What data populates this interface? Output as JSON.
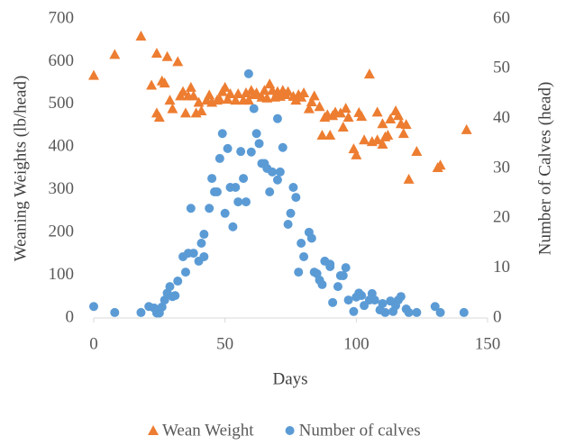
{
  "chart_data": {
    "type": "scatter",
    "x_label": "Days",
    "y_label": "Weaning Weights (lb/head)",
    "y2_label": "Number of Calves (head)",
    "xlim": [
      0,
      150
    ],
    "xticks": [
      0,
      50,
      100,
      150
    ],
    "ylim": [
      0,
      700
    ],
    "yticks": [
      0,
      100,
      200,
      300,
      400,
      500,
      600,
      700
    ],
    "y2lim": [
      0,
      60
    ],
    "y2ticks": [
      0,
      10,
      20,
      30,
      40,
      50,
      60
    ],
    "grid": false,
    "legend": "bottom",
    "series": [
      {
        "name": "Wean Weight",
        "color": "#ed7d31",
        "marker": "triangle",
        "x": [
          0,
          8,
          18,
          22,
          24,
          24,
          25,
          26,
          27,
          28,
          29,
          30,
          32,
          33,
          34,
          35,
          36,
          37,
          38,
          39,
          40,
          41,
          43,
          44,
          45,
          47,
          48,
          49,
          50,
          51,
          52,
          54,
          55,
          57,
          58,
          59,
          60,
          61,
          62,
          64,
          65,
          66,
          67,
          68,
          69,
          70,
          71,
          72,
          73,
          74,
          76,
          77,
          78,
          79,
          80,
          82,
          83,
          84,
          86,
          87,
          88,
          89,
          90,
          91,
          92,
          94,
          95,
          96,
          97,
          99,
          100,
          101,
          102,
          103,
          105,
          106,
          108,
          108,
          110,
          110,
          111,
          112,
          113,
          115,
          116,
          117,
          118,
          119,
          120,
          123,
          131,
          132,
          142
        ],
        "values": [
          568,
          617,
          660,
          545,
          620,
          480,
          470,
          555,
          550,
          612,
          510,
          490,
          600,
          520,
          530,
          480,
          520,
          540,
          520,
          480,
          505,
          485,
          510,
          522,
          505,
          510,
          512,
          530,
          540,
          512,
          525,
          510,
          525,
          510,
          527,
          510,
          533,
          523,
          527,
          517,
          533,
          515,
          548,
          533,
          517,
          530,
          519,
          533,
          523,
          530,
          519,
          510,
          523,
          517,
          527,
          490,
          506,
          520,
          495,
          428,
          470,
          476,
          428,
          474,
          482,
          480,
          447,
          491,
          470,
          396,
          382,
          481,
          472,
          417,
          571,
          413,
          417,
          482,
          407,
          455,
          424,
          428,
          466,
          485,
          474,
          455,
          432,
          453,
          325,
          390,
          352,
          358,
          441
        ]
      },
      {
        "name": "Number of calves",
        "color": "#5b9bd5",
        "marker": "circle",
        "axis": "y2",
        "x": [
          0,
          8,
          18,
          21,
          23,
          24,
          24,
          25,
          26,
          27,
          28,
          29,
          30,
          31,
          32,
          34,
          35,
          36,
          37,
          38,
          40,
          41,
          42,
          42,
          44,
          45,
          46,
          47,
          48,
          49,
          50,
          51,
          52,
          53,
          54,
          55,
          56,
          57,
          58,
          59,
          60,
          61,
          62,
          63,
          64,
          65,
          66,
          67,
          68,
          70,
          70,
          71,
          72,
          74,
          75,
          76,
          77,
          78,
          79,
          80,
          82,
          83,
          84,
          85,
          86,
          87,
          88,
          90,
          90,
          91,
          93,
          94,
          95,
          96,
          97,
          99,
          100,
          101,
          102,
          103,
          105,
          106,
          107,
          109,
          110,
          111,
          113,
          114,
          115,
          116,
          117,
          119,
          120,
          123,
          130,
          132,
          141
        ],
        "values": [
          2.3,
          1.1,
          1.1,
          2.3,
          2,
          1,
          1.6,
          1,
          2.2,
          3.6,
          5,
          6.3,
          4.3,
          4.5,
          7.4,
          12.3,
          9.2,
          13,
          22,
          13,
          11.4,
          15,
          12.3,
          16.8,
          22,
          28,
          25.3,
          25.3,
          32,
          37,
          21,
          34,
          26.2,
          18.3,
          26.2,
          23.3,
          33.4,
          28,
          23.3,
          49,
          33.3,
          42,
          37,
          35,
          31,
          31,
          30,
          25.3,
          29.3,
          27.7,
          40,
          29.3,
          34.2,
          18.8,
          21,
          26.2,
          24.2,
          9.2,
          15,
          12.3,
          17.2,
          16,
          9.2,
          8.9,
          7.6,
          6.7,
          11.4,
          10.3,
          10.8,
          3.1,
          6.3,
          8.5,
          8.5,
          10.1,
          3.6,
          1.3,
          4.2,
          5,
          4.5,
          2.5,
          3.6,
          4.9,
          3.6,
          1.6,
          2.9,
          1.1,
          3.4,
          1.3,
          2.5,
          3.6,
          4.3,
          1.8,
          1.1,
          1.1,
          2.3,
          1.1,
          1.1
        ]
      }
    ]
  }
}
